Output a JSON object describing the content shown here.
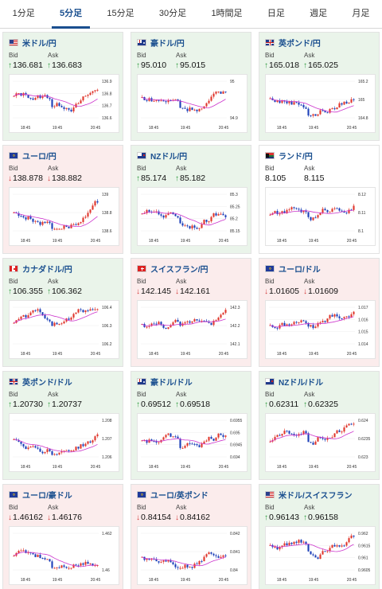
{
  "tabs": [
    {
      "label": "1分足",
      "active": false
    },
    {
      "label": "5分足",
      "active": true
    },
    {
      "label": "15分足",
      "active": false
    },
    {
      "label": "30分足",
      "active": false
    },
    {
      "label": "1時間足",
      "active": false
    },
    {
      "label": "日足",
      "active": false
    },
    {
      "label": "週足",
      "active": false
    },
    {
      "label": "月足",
      "active": false
    }
  ],
  "labels": {
    "bid": "Bid",
    "ask": "Ask"
  },
  "colors": {
    "up_bg": "#eaf4ea",
    "down_bg": "#fbecec",
    "up": "#2c9a3c",
    "down": "#d53a3a",
    "link": "#1a4f8f",
    "ma_line": "#cc33cc"
  },
  "cards": [
    {
      "pair": "米ドル/円",
      "flag": "us",
      "dir": "up",
      "bid": "136.681",
      "ask": "136.683",
      "x_ticks": [
        "18:45",
        "19:45",
        "20:45"
      ],
      "y_ticks": [
        "136.9",
        "136.8",
        "136.7",
        "136.6"
      ]
    },
    {
      "pair": "豪ドル/円",
      "flag": "au",
      "dir": "up",
      "bid": "95.010",
      "ask": "95.015",
      "x_ticks": [
        "18:45",
        "19:45",
        "20:45"
      ],
      "y_ticks": [
        "95",
        "94.9"
      ]
    },
    {
      "pair": "英ポンド/円",
      "flag": "gb",
      "dir": "up",
      "bid": "165.018",
      "ask": "165.025",
      "x_ticks": [
        "18:45",
        "19:45",
        "20:45"
      ],
      "y_ticks": [
        "165.2",
        "165",
        "164.8"
      ]
    },
    {
      "pair": "ユーロ/円",
      "flag": "eu",
      "dir": "down",
      "bid": "138.878",
      "ask": "138.882",
      "x_ticks": [
        "18:45",
        "19:45",
        "20:45"
      ],
      "y_ticks": [
        "139",
        "138.8",
        "138.6"
      ]
    },
    {
      "pair": "NZドル/円",
      "flag": "nz",
      "dir": "up",
      "bid": "85.174",
      "ask": "85.182",
      "x_ticks": [
        "18:45",
        "19:45",
        "20:45"
      ],
      "y_ticks": [
        "85.3",
        "85.25",
        "85.2",
        "85.15"
      ]
    },
    {
      "pair": "ランド/円",
      "flag": "za",
      "dir": "none",
      "bid": "8.105",
      "ask": "8.115",
      "x_ticks": [
        "18:45",
        "19:45",
        "20:45"
      ],
      "y_ticks": [
        "8.12",
        "8.11",
        "8.1"
      ]
    },
    {
      "pair": "カナダドル/円",
      "flag": "ca",
      "dir": "up",
      "bid": "106.355",
      "ask": "106.362",
      "x_ticks": [
        "18:45",
        "19:45",
        "20:45"
      ],
      "y_ticks": [
        "106.4",
        "106.3",
        "106.2"
      ]
    },
    {
      "pair": "スイスフラン/円",
      "flag": "ch",
      "dir": "down",
      "bid": "142.145",
      "ask": "142.161",
      "x_ticks": [
        "18:45",
        "19:45",
        "20:45"
      ],
      "y_ticks": [
        "142.3",
        "142.2",
        "142.1"
      ]
    },
    {
      "pair": "ユーロ/ドル",
      "flag": "eu",
      "dir": "down",
      "bid": "1.01605",
      "ask": "1.01609",
      "x_ticks": [
        "18:45",
        "19:45",
        "20:45"
      ],
      "y_ticks": [
        "1.017",
        "1.016",
        "1.015",
        "1.014"
      ]
    },
    {
      "pair": "英ポンド/ドル",
      "flag": "gb",
      "dir": "up",
      "bid": "1.20730",
      "ask": "1.20737",
      "x_ticks": [
        "18:45",
        "19:45",
        "20:45"
      ],
      "y_ticks": [
        "1.208",
        "1.207",
        "1.206"
      ]
    },
    {
      "pair": "豪ドル/ドル",
      "flag": "au",
      "dir": "up",
      "bid": "0.69512",
      "ask": "0.69518",
      "x_ticks": [
        "18:45",
        "19:45",
        "20:45"
      ],
      "y_ticks": [
        "0.6955",
        "0.695",
        "0.6945",
        "0.694"
      ]
    },
    {
      "pair": "NZドル/ドル",
      "flag": "nz",
      "dir": "up",
      "bid": "0.62311",
      "ask": "0.62325",
      "x_ticks": [
        "18:45",
        "19:45",
        "20:45"
      ],
      "y_ticks": [
        "0.624",
        "0.6235",
        "0.623"
      ]
    },
    {
      "pair": "ユーロ/豪ドル",
      "flag": "eu",
      "dir": "down",
      "bid": "1.46162",
      "ask": "1.46176",
      "x_ticks": [
        "18:45",
        "19:45",
        "20:45"
      ],
      "y_ticks": [
        "1.462",
        "1.46"
      ]
    },
    {
      "pair": "ユーロ/英ポンド",
      "flag": "eu",
      "dir": "down",
      "bid": "0.84154",
      "ask": "0.84162",
      "x_ticks": [
        "18:45",
        "19:45",
        "20:45"
      ],
      "y_ticks": [
        "0.842",
        "0.841",
        "0.84"
      ]
    },
    {
      "pair": "米ドル/スイスフラン",
      "flag": "us",
      "dir": "up",
      "bid": "0.96143",
      "ask": "0.96158",
      "x_ticks": [
        "18:45",
        "19:45",
        "20:45"
      ],
      "y_ticks": [
        "0.962",
        "0.9615",
        "0.961",
        "0.9605"
      ]
    }
  ]
}
